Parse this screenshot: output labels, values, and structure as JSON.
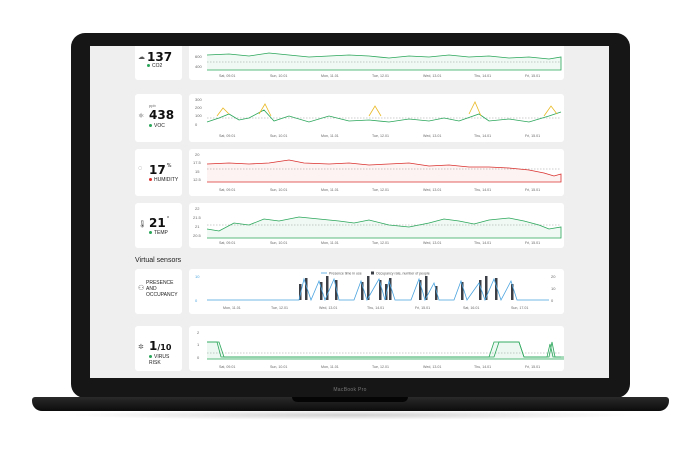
{
  "device": {
    "brand": "MacBook Pro"
  },
  "metrics": [
    {
      "id": "co2",
      "value": "137",
      "label": "CO2",
      "dot": "#2aa65a",
      "icon": "cloud-icon"
    },
    {
      "id": "voc",
      "value": "438",
      "unit_top": "ppb",
      "label": "VOC",
      "dot": "#2aa65a",
      "icon": "molecule-icon"
    },
    {
      "id": "humidity",
      "value": "17",
      "unit": "%",
      "label": "HUMIDITY",
      "dot": "#d9302d",
      "icon": "droplet-icon"
    },
    {
      "id": "temp",
      "value": "21",
      "unit": "°",
      "label": "TEMP",
      "dot": "#2aa65a",
      "icon": "thermometer-icon"
    }
  ],
  "dates": [
    "Sat, 09.01",
    "Sun, 10.01",
    "Mon, 11.01",
    "Tue, 12.01",
    "Wed, 13.01",
    "Thu, 14.01",
    "Fri, 15.01"
  ],
  "dates_short": [
    "Sat, 09.01",
    "Sun, 10.01",
    "Mon, 11.01",
    "Tue, 12.01",
    "Wed, 13.01",
    "Thu, 14.01",
    "Fri, 15.01"
  ],
  "presence_dates": [
    "Mon, 11.01",
    "Tue, 12.01",
    "Wed, 13.01",
    "Thu, 14.01",
    "Fri, 15.01",
    "Sat, 16.01",
    "Sun, 17.01"
  ],
  "axes": {
    "co2": [
      "600",
      "400"
    ],
    "voc": [
      "300",
      "200",
      "100",
      "0"
    ],
    "humidity": [
      "20",
      "17.5",
      "15",
      "12.5"
    ],
    "temp": [
      "22",
      "21.5",
      "21",
      "20.5"
    ],
    "presence_left": [
      "10",
      "0"
    ],
    "presence_right": [
      "20",
      "10",
      "0"
    ],
    "virus": [
      "2",
      "1",
      "0"
    ]
  },
  "section_title": "Virtual sensors",
  "presence": {
    "label_line1": "PRESENCE",
    "label_line2": "AND",
    "label_line3": "OCCUPANCY",
    "legend_line": "Presence time in use",
    "legend_bar": "Occupancy rate, number of people"
  },
  "virus": {
    "value": "1",
    "den": "/10",
    "label": "VIRUS RISK",
    "dot": "#2aa65a"
  },
  "colors": {
    "green": "#2aa65a",
    "red": "#d9302d",
    "yellow": "#e8b923",
    "blue": "#4aa3df",
    "bar": "#3c3f45"
  }
}
